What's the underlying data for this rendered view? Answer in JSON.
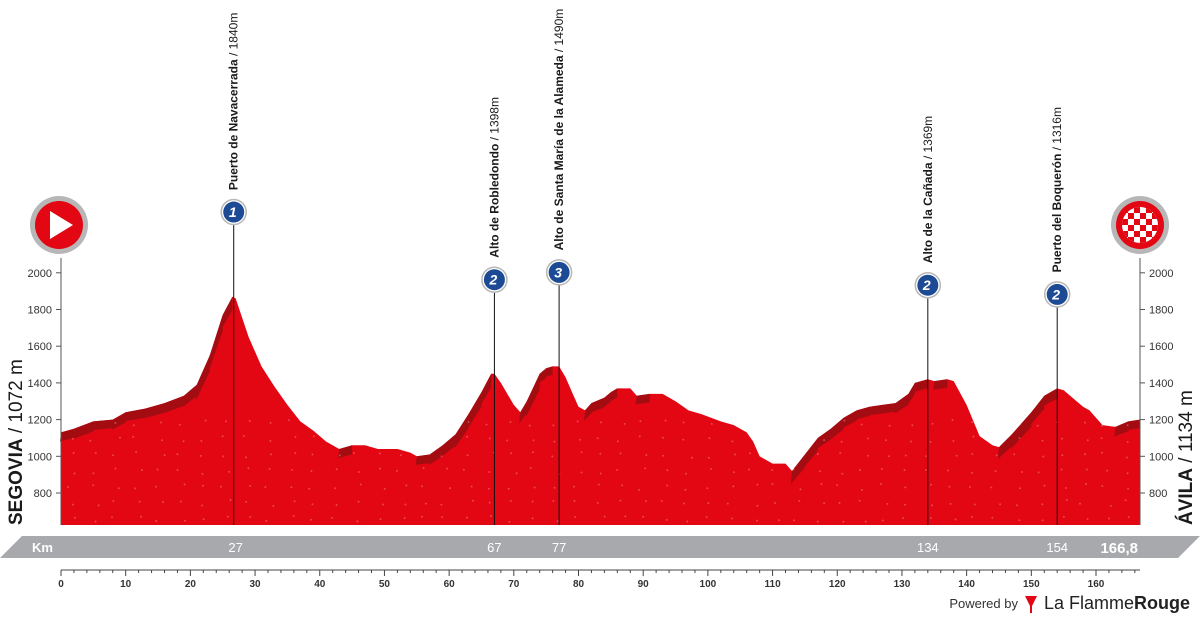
{
  "chart_data": {
    "type": "area",
    "start": {
      "name": "SEGOVIA",
      "elevation": "1072 m",
      "icon": "start-arrow-icon"
    },
    "finish": {
      "name": "ÁVILA",
      "elevation": "1134 m",
      "icon": "finish-checkered-icon"
    },
    "ylim": [
      650,
      2100
    ],
    "yticks": [
      800,
      1000,
      1200,
      1400,
      1600,
      1800,
      2000
    ],
    "xlim": [
      0,
      166.8
    ],
    "xticks": [
      0,
      10,
      20,
      30,
      40,
      50,
      60,
      70,
      80,
      90,
      100,
      110,
      120,
      130,
      140,
      150,
      160
    ],
    "km_bar": {
      "label": "Km",
      "total": "166,8",
      "marks": [
        "27",
        "67",
        "77",
        "134",
        "154"
      ]
    },
    "profile": [
      [
        0,
        1130
      ],
      [
        2,
        1150
      ],
      [
        5,
        1190
      ],
      [
        8,
        1200
      ],
      [
        10,
        1240
      ],
      [
        13,
        1260
      ],
      [
        16,
        1290
      ],
      [
        19,
        1330
      ],
      [
        21,
        1390
      ],
      [
        23,
        1550
      ],
      [
        25,
        1770
      ],
      [
        26.5,
        1870
      ],
      [
        27,
        1860
      ],
      [
        29,
        1650
      ],
      [
        31,
        1490
      ],
      [
        33,
        1380
      ],
      [
        35,
        1280
      ],
      [
        37,
        1190
      ],
      [
        39,
        1140
      ],
      [
        41,
        1080
      ],
      [
        43,
        1040
      ],
      [
        45,
        1060
      ],
      [
        47,
        1060
      ],
      [
        49,
        1040
      ],
      [
        52,
        1040
      ],
      [
        54,
        1020
      ],
      [
        55,
        1000
      ],
      [
        57,
        1010
      ],
      [
        59,
        1060
      ],
      [
        61,
        1120
      ],
      [
        63,
        1230
      ],
      [
        65,
        1350
      ],
      [
        66.5,
        1450
      ],
      [
        67,
        1450
      ],
      [
        68,
        1400
      ],
      [
        70,
        1280
      ],
      [
        71,
        1240
      ],
      [
        72,
        1300
      ],
      [
        74,
        1450
      ],
      [
        75,
        1480
      ],
      [
        76,
        1490
      ],
      [
        77,
        1490
      ],
      [
        78,
        1430
      ],
      [
        79,
        1350
      ],
      [
        80,
        1270
      ],
      [
        81,
        1250
      ],
      [
        82,
        1290
      ],
      [
        84,
        1320
      ],
      [
        85,
        1350
      ],
      [
        86,
        1370
      ],
      [
        88,
        1370
      ],
      [
        89,
        1330
      ],
      [
        91,
        1340
      ],
      [
        93,
        1340
      ],
      [
        95,
        1300
      ],
      [
        97,
        1250
      ],
      [
        99,
        1230
      ],
      [
        102,
        1190
      ],
      [
        104,
        1170
      ],
      [
        106,
        1130
      ],
      [
        107,
        1080
      ],
      [
        108,
        1000
      ],
      [
        110,
        960
      ],
      [
        112,
        960
      ],
      [
        113,
        920
      ],
      [
        115,
        1010
      ],
      [
        117,
        1100
      ],
      [
        119,
        1150
      ],
      [
        121,
        1210
      ],
      [
        123,
        1250
      ],
      [
        125,
        1270
      ],
      [
        127,
        1280
      ],
      [
        129,
        1290
      ],
      [
        131,
        1340
      ],
      [
        132,
        1400
      ],
      [
        134,
        1420
      ],
      [
        135,
        1410
      ],
      [
        137,
        1420
      ],
      [
        138,
        1410
      ],
      [
        140,
        1280
      ],
      [
        142,
        1110
      ],
      [
        144,
        1060
      ],
      [
        145,
        1050
      ],
      [
        147,
        1120
      ],
      [
        150,
        1240
      ],
      [
        152,
        1330
      ],
      [
        154,
        1370
      ],
      [
        155,
        1360
      ],
      [
        157,
        1300
      ],
      [
        158,
        1270
      ],
      [
        159,
        1250
      ],
      [
        161,
        1170
      ],
      [
        163,
        1160
      ],
      [
        165,
        1190
      ],
      [
        166.8,
        1200
      ]
    ],
    "climbs": [
      {
        "name": "Puerto de Navacerrada",
        "elevation": "1840m",
        "km": 26.7,
        "peak": 1870,
        "category": "1",
        "icon": "category-1-climb-icon"
      },
      {
        "name": "Alto de Robledondo",
        "elevation": "1398m",
        "km": 67,
        "peak": 1450,
        "category": "2",
        "icon": "category-2-climb-icon"
      },
      {
        "name": "Alto de Santa María de la Alameda",
        "elevation": "1490m",
        "km": 77,
        "peak": 1490,
        "category": "3",
        "icon": "category-3-climb-icon"
      },
      {
        "name": "Alto de la Cañada",
        "elevation": "1369m",
        "km": 134,
        "peak": 1420,
        "category": "2",
        "icon": "category-2-climb-icon"
      },
      {
        "name": "Puerto del Boquerón",
        "elevation": "1316m",
        "km": 154,
        "peak": 1370,
        "category": "2",
        "icon": "category-2-climb-icon"
      }
    ],
    "colors": {
      "fill": "#e30613",
      "shade": "#a30d12",
      "badge": "#1c4a94",
      "bar": "#a7a9ac"
    }
  },
  "credit": {
    "powered_by": "Powered by",
    "brand_light": "La Flamme",
    "brand_bold": "Rouge"
  }
}
